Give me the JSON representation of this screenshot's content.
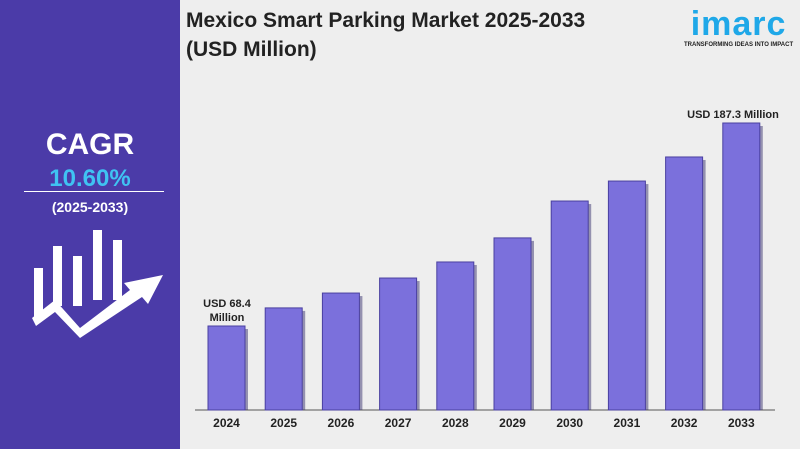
{
  "cagr": {
    "label": "CAGR",
    "value": "10.60%",
    "period": "(2025-2033)"
  },
  "title_line1": "Mexico Smart Parking Market 2025-2033",
  "title_line2": "(USD Million)",
  "logo": {
    "word": "imarc",
    "tagline": "TRANSFORMING IDEAS INTO IMPACT"
  },
  "colors": {
    "panel": "#4b3ba8",
    "bar": "#7b70dc",
    "accent": "#3fc3f2"
  },
  "chart_data": {
    "type": "bar",
    "title": "Mexico Smart Parking Market 2025-2033 (USD Million)",
    "categories": [
      "2024",
      "2025",
      "2026",
      "2027",
      "2028",
      "2029",
      "2030",
      "2031",
      "2032",
      "2033"
    ],
    "values": [
      68.4,
      79.0,
      87.7,
      96.5,
      105.9,
      120.0,
      141.6,
      153.3,
      167.4,
      187.3
    ],
    "annotations": {
      "first": [
        "USD 68.4",
        "Million"
      ],
      "last": "USD 187.3 Million"
    },
    "grid": false
  }
}
